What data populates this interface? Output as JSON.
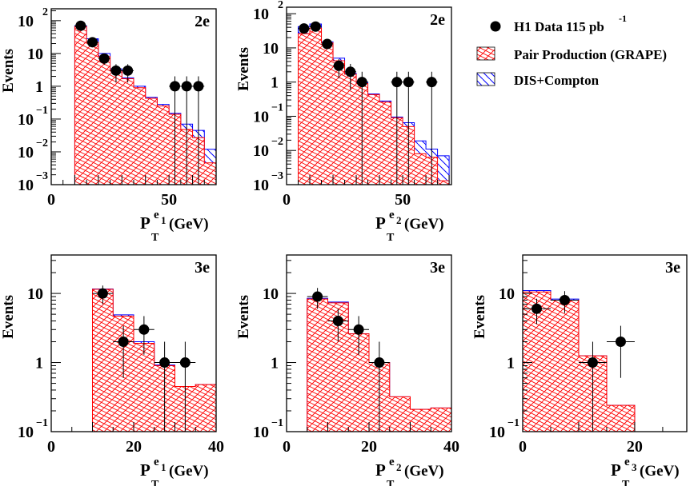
{
  "legend": {
    "data_label": "H1 Data 115 pb",
    "data_label_exp": "-1",
    "pair_label": "Pair Production (GRAPE)",
    "dis_label": "DIS+Compton"
  },
  "colors": {
    "pair": "#ff0000",
    "dis": "#0000ff",
    "data": "#000000",
    "frame": "#000000"
  },
  "chart_data": [
    {
      "type": "bar",
      "panel_label": "2e",
      "ylabel": "Events",
      "xlabel": {
        "main": "P",
        "sub": "T",
        "sup": "e",
        "sup_index": "1",
        "unit": "(GeV)"
      },
      "xlim": [
        0,
        70
      ],
      "ylim": [
        0.001,
        230
      ],
      "log_y": true,
      "xtick_labels": [
        {
          "v": 0,
          "t": "0"
        },
        {
          "v": 50,
          "t": "50"
        }
      ],
      "ytick_labels": [
        {
          "v": 100,
          "b": "10",
          "e": "2"
        },
        {
          "v": 10,
          "b": "10",
          "e": ""
        },
        {
          "v": 1,
          "b": "1",
          "e": ""
        },
        {
          "v": 0.1,
          "b": "10",
          "e": "−1"
        },
        {
          "v": 0.01,
          "b": "10",
          "e": "−2"
        },
        {
          "v": 0.001,
          "b": "10",
          "e": "−3"
        }
      ],
      "bin_edges_start": 10,
      "bin_width": 5,
      "series": [
        {
          "name": "DIS+Compton",
          "values": [
            70,
            28,
            10,
            3.4,
            1.8,
            1.0,
            0.46,
            0.28,
            0.15,
            0.07,
            0.045,
            0.012
          ]
        },
        {
          "name": "Pair Production (GRAPE)",
          "values": [
            65,
            22,
            8,
            3,
            1.7,
            0.9,
            0.43,
            0.25,
            0.14,
            0.048,
            0.027,
            0.0046
          ]
        }
      ],
      "data_points": {
        "name": "H1 Data 115 pb-1",
        "x": [
          12.5,
          17.5,
          22.5,
          27.5,
          32.5,
          52.5,
          57.5,
          62.5
        ],
        "y": [
          70,
          22,
          7,
          3,
          3,
          1,
          1,
          1
        ],
        "y_low": [
          62,
          17,
          4.5,
          1.3,
          1.3,
          0,
          0,
          0
        ],
        "y_high": [
          78,
          27,
          9.5,
          4.7,
          4.7,
          2,
          2,
          2
        ],
        "xerr": 2.5
      }
    },
    {
      "type": "bar",
      "panel_label": "2e",
      "ylabel": "Events",
      "xlabel": {
        "main": "P",
        "sub": "T",
        "sup": "e",
        "sup_index": "2",
        "unit": "(GeV)"
      },
      "xlim": [
        0,
        71
      ],
      "ylim": [
        0.001,
        155
      ],
      "log_y": true,
      "xtick_labels": [
        {
          "v": 0,
          "t": "0"
        },
        {
          "v": 50,
          "t": "50"
        }
      ],
      "ytick_labels": [
        {
          "v": 100,
          "b": "10",
          "e": "2"
        },
        {
          "v": 10,
          "b": "10",
          "e": ""
        },
        {
          "v": 1,
          "b": "1",
          "e": ""
        },
        {
          "v": 0.1,
          "b": "10",
          "e": "−1"
        },
        {
          "v": 0.01,
          "b": "10",
          "e": "−2"
        },
        {
          "v": 0.001,
          "b": "10",
          "e": "−3"
        }
      ],
      "bin_edges_start": 5,
      "bin_width": 5,
      "series": [
        {
          "name": "DIS+Compton",
          "values": [
            42,
            50,
            15,
            5,
            1.8,
            1.0,
            0.45,
            0.28,
            0.095,
            0.065,
            0.019,
            0.011,
            0.007
          ]
        },
        {
          "name": "Pair Production (GRAPE)",
          "values": [
            26,
            38,
            14,
            4.2,
            1.7,
            0.9,
            0.43,
            0.26,
            0.09,
            0.05,
            0.008,
            0.0063,
            0.0013
          ]
        }
      ],
      "data_points": {
        "name": "H1 Data 115 pb-1",
        "x": [
          7.5,
          12.5,
          17.5,
          22.5,
          27.5,
          32.5,
          47.5,
          52.5,
          62.5
        ],
        "y": [
          37,
          42,
          13,
          3,
          2,
          1,
          1,
          1,
          1
        ],
        "y_low": [
          31,
          36,
          9.5,
          1.3,
          0.6,
          0,
          0,
          0,
          0
        ],
        "y_high": [
          43,
          48,
          16.5,
          4.7,
          3.4,
          2,
          2,
          2,
          2
        ],
        "xerr": 2.5
      }
    },
    {
      "type": "bar",
      "panel_label": "3e",
      "ylabel": "Events",
      "xlabel": {
        "main": "P",
        "sub": "T",
        "sup": "e",
        "sup_index": "1",
        "unit": "(GeV)"
      },
      "xlim": [
        0,
        40
      ],
      "ylim": [
        0.1,
        36
      ],
      "log_y": true,
      "xtick_labels": [
        {
          "v": 0,
          "t": "0"
        },
        {
          "v": 20,
          "t": "20"
        },
        {
          "v": 40,
          "t": "40"
        }
      ],
      "ytick_labels": [
        {
          "v": 10,
          "b": "10",
          "e": ""
        },
        {
          "v": 1,
          "b": "1",
          "e": ""
        },
        {
          "v": 0.1,
          "b": "10",
          "e": "−1"
        }
      ],
      "bin_edges_start": 10,
      "bin_width": 5,
      "series": [
        {
          "name": "DIS+Compton",
          "values": [
            11.6,
            4.9,
            2.0,
            0.92,
            0.45,
            0.48
          ]
        },
        {
          "name": "Pair Production (GRAPE)",
          "values": [
            11.5,
            4.7,
            1.9,
            0.9,
            0.45,
            0.48
          ]
        }
      ],
      "data_points": {
        "name": "H1 Data 115 pb-1",
        "x": [
          12.5,
          17.5,
          22.5,
          27.5,
          32.5
        ],
        "y": [
          10,
          2,
          3,
          1,
          1
        ],
        "y_low": [
          7,
          0.6,
          1.3,
          0,
          0
        ],
        "y_high": [
          13,
          3.4,
          4.7,
          2,
          2
        ],
        "xerr": 2.5
      }
    },
    {
      "type": "bar",
      "panel_label": "3e",
      "ylabel": "Events",
      "xlabel": {
        "main": "P",
        "sub": "T",
        "sup": "e",
        "sup_index": "2",
        "unit": "(GeV)"
      },
      "xlim": [
        0,
        40
      ],
      "ylim": [
        0.1,
        36
      ],
      "log_y": true,
      "xtick_labels": [
        {
          "v": 0,
          "t": "0"
        },
        {
          "v": 20,
          "t": "20"
        },
        {
          "v": 40,
          "t": "40"
        }
      ],
      "ytick_labels": [
        {
          "v": 10,
          "b": "10",
          "e": ""
        },
        {
          "v": 1,
          "b": "1",
          "e": ""
        },
        {
          "v": 0.1,
          "b": "10",
          "e": "−1"
        }
      ],
      "bin_edges_start": 5,
      "bin_width": 5,
      "series": [
        {
          "name": "DIS+Compton",
          "values": [
            8.5,
            7.5,
            2.6,
            1.0,
            0.32,
            0.21,
            0.22
          ]
        },
        {
          "name": "Pair Production (GRAPE)",
          "values": [
            8.3,
            7.3,
            2.6,
            1.0,
            0.32,
            0.21,
            0.22
          ]
        }
      ],
      "data_points": {
        "name": "H1 Data 115 pb-1",
        "x": [
          7.5,
          12.5,
          17.5,
          22.5
        ],
        "y": [
          9,
          4,
          3,
          1
        ],
        "y_low": [
          6,
          2,
          1.3,
          0
        ],
        "y_high": [
          12,
          6,
          4.7,
          2
        ],
        "xerr": 2.5
      }
    },
    {
      "type": "bar",
      "panel_label": "3e",
      "ylabel": "Events",
      "xlabel": {
        "main": "P",
        "sub": "T",
        "sup": "e",
        "sup_index": "3",
        "unit": "(GeV)"
      },
      "xlim": [
        0,
        29.3
      ],
      "ylim": [
        0.1,
        36
      ],
      "log_y": true,
      "xtick_labels": [
        {
          "v": 0,
          "t": "0"
        },
        {
          "v": 20,
          "t": "20"
        }
      ],
      "ytick_labels": [
        {
          "v": 10,
          "b": "10",
          "e": ""
        },
        {
          "v": 1,
          "b": "1",
          "e": ""
        },
        {
          "v": 0.1,
          "b": "10",
          "e": "−1"
        }
      ],
      "bin_edges_start": 0,
      "bin_width": 5,
      "series": [
        {
          "name": "DIS+Compton",
          "values": [
            11,
            8.3,
            1.25,
            0.24
          ]
        },
        {
          "name": "Pair Production (GRAPE)",
          "values": [
            10.5,
            8.0,
            1.25,
            0.24
          ]
        }
      ],
      "data_points": {
        "name": "H1 Data 115 pb-1",
        "x": [
          2.5,
          7.5,
          12.5,
          17.5
        ],
        "y": [
          6,
          8,
          1,
          2
        ],
        "y_low": [
          3.6,
          5.2,
          0,
          0.6
        ],
        "y_high": [
          8.4,
          10.8,
          2,
          3.4
        ],
        "xerr": 2.5
      }
    }
  ]
}
